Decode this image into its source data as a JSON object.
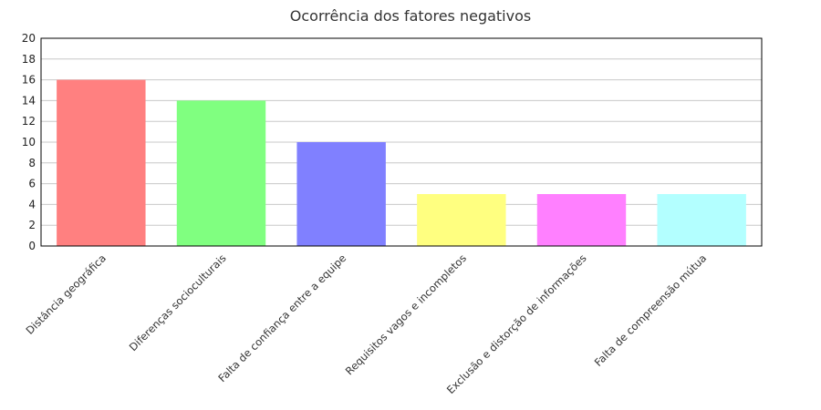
{
  "chart_data": {
    "type": "bar",
    "title": "Ocorrência dos fatores negativos",
    "xlabel": "",
    "ylabel": "",
    "ylim": [
      0,
      20
    ],
    "yticks": [
      0,
      2,
      4,
      6,
      8,
      10,
      12,
      14,
      16,
      18,
      20
    ],
    "grid": true,
    "categories": [
      "Distância geográfica",
      "Diferenças socioculturais",
      "Falta de confiança entre a equipe",
      "Requisitos vagos e incompletos",
      "Exclusão e distorção de informações",
      "Falta de compreensão mútua"
    ],
    "values": [
      16,
      14,
      10,
      5,
      5,
      5
    ],
    "colors": [
      "#ff8080",
      "#80ff80",
      "#8080ff",
      "#ffff80",
      "#ff80ff",
      "#b3ffff"
    ]
  }
}
